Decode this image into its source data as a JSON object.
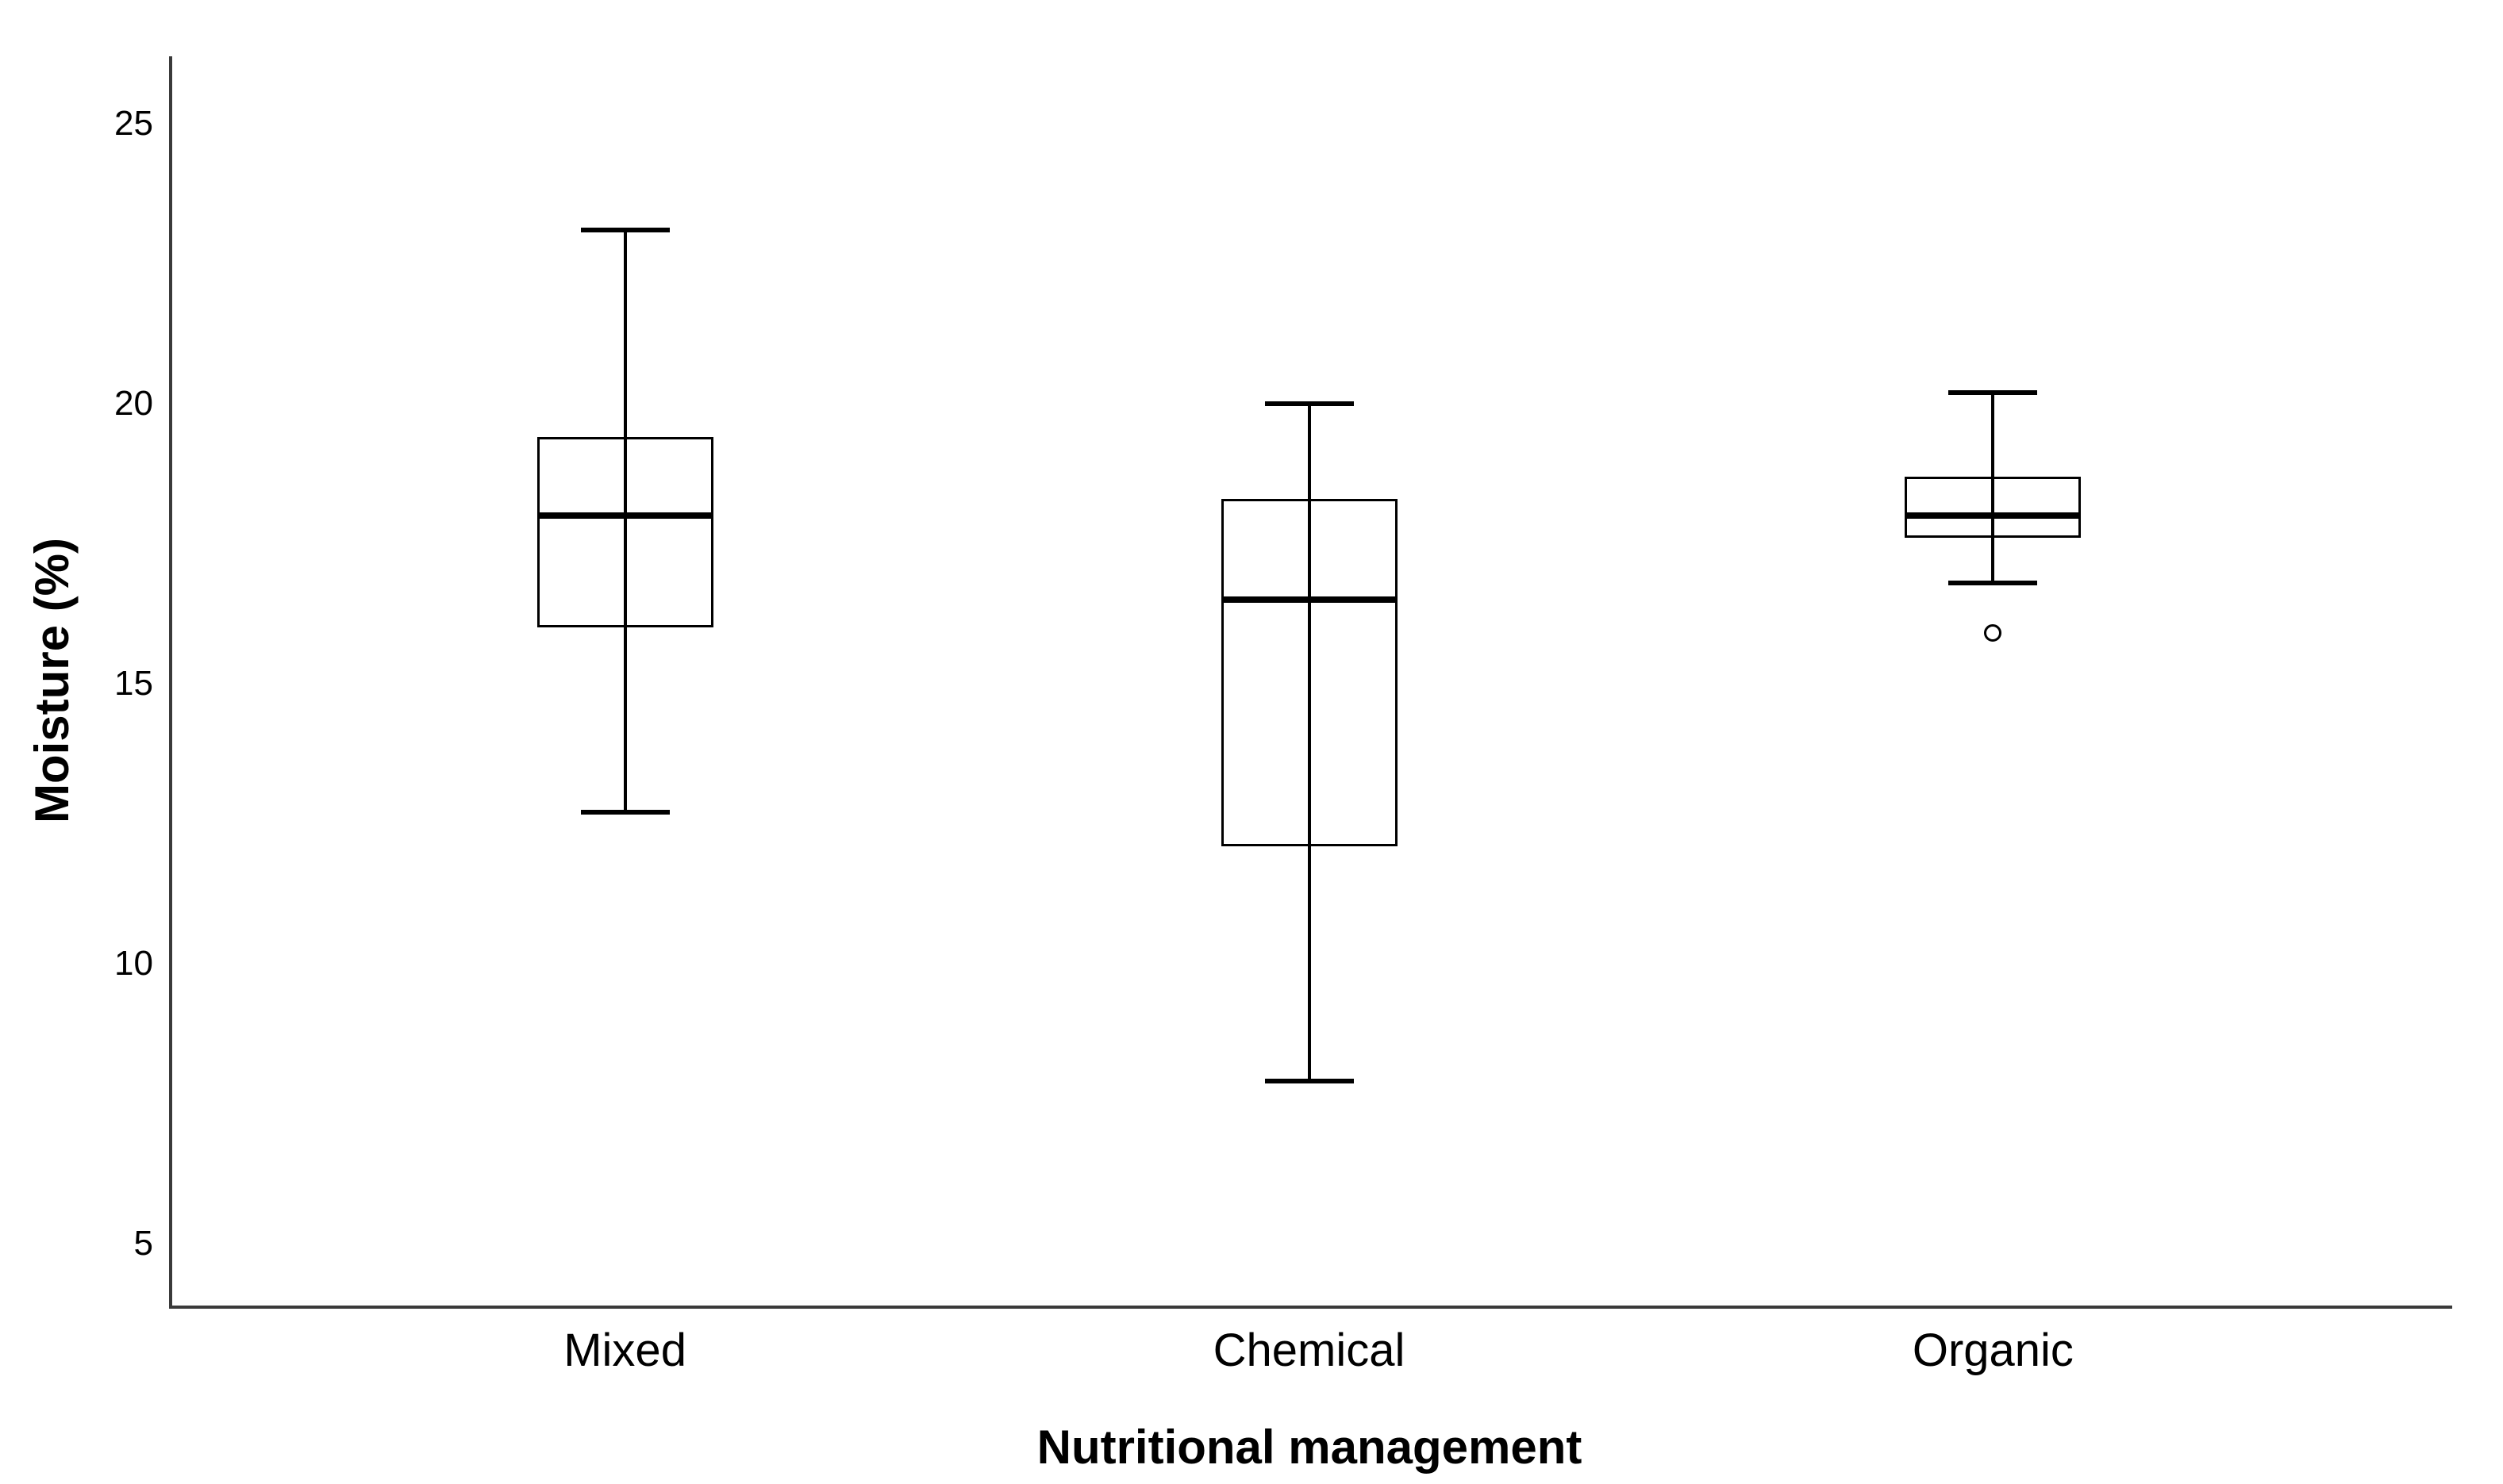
{
  "chart_data": {
    "type": "box",
    "title": "",
    "xlabel": "Nutritional management",
    "ylabel": "Moisture (%)",
    "categories": [
      "Mixed",
      "Chemical",
      "Organic"
    ],
    "yticks": [
      5,
      10,
      15,
      20,
      25
    ],
    "ylim": [
      3.9,
      26.2
    ],
    "grid": false,
    "legend": "none",
    "series": [
      {
        "category": "Mixed",
        "whisker_low": 12.7,
        "q1": 16.0,
        "median": 18.0,
        "q3": 19.4,
        "whisker_high": 23.1,
        "outliers": []
      },
      {
        "category": "Chemical",
        "whisker_low": 7.9,
        "q1": 12.1,
        "median": 16.5,
        "q3": 18.3,
        "whisker_high": 20.0,
        "outliers": []
      },
      {
        "category": "Organic",
        "whisker_low": 16.8,
        "q1": 17.6,
        "median": 18.0,
        "q3": 18.7,
        "whisker_high": 20.2,
        "outliers": [
          15.9
        ]
      }
    ],
    "colors": {
      "box_stroke": "#000000",
      "median": "#000000",
      "whisker": "#000000",
      "outlier_stroke": "#000000",
      "axis": "#3a3a3a",
      "text": "#000000",
      "background": "#ffffff"
    }
  }
}
